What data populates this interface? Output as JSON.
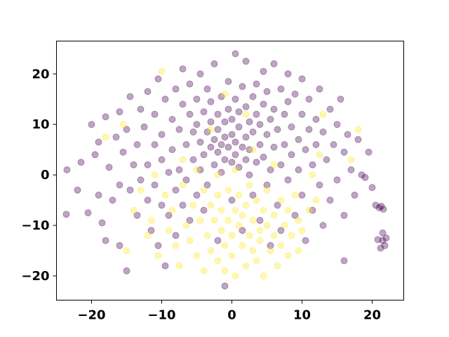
{
  "chart_data": {
    "type": "scatter",
    "title": "",
    "xlabel": "",
    "ylabel": "",
    "xlim": [
      -25,
      24.5
    ],
    "ylim": [
      -24.8,
      26.5
    ],
    "grid": false,
    "legend": "none",
    "x_ticks": [
      -20,
      -10,
      0,
      10,
      20
    ],
    "y_ticks": [
      -20,
      -10,
      0,
      10,
      20
    ],
    "x_tick_labels": [
      "−20",
      "−10",
      "0",
      "10",
      "20"
    ],
    "y_tick_labels": [
      "−20",
      "−10",
      "0",
      "10",
      "20"
    ],
    "point_alpha": 0.35,
    "colors": {
      "class_0": "#440154",
      "class_1": "#fde725"
    },
    "series": [
      {
        "color_key": "class_0",
        "points": [
          [
            -23.5,
            1.0
          ],
          [
            -23.6,
            -7.8
          ],
          [
            -22,
            -3
          ],
          [
            -21.5,
            2.5
          ],
          [
            -20,
            10
          ],
          [
            -20.5,
            -7.5
          ],
          [
            -19.5,
            4
          ],
          [
            -19,
            6.5
          ],
          [
            -19,
            -4
          ],
          [
            -18.5,
            -9.5
          ],
          [
            -18,
            11.5
          ],
          [
            -18,
            -13
          ],
          [
            -17.5,
            1.5
          ],
          [
            -17,
            -5
          ],
          [
            -16.5,
            7.5
          ],
          [
            -16,
            12.5
          ],
          [
            -16,
            -2
          ],
          [
            -16,
            -14
          ],
          [
            -15.5,
            4.5
          ],
          [
            -15,
            9
          ],
          [
            -15,
            -19
          ],
          [
            -14.5,
            15.5
          ],
          [
            -14.5,
            -3
          ],
          [
            -14,
            2
          ],
          [
            -13.5,
            6
          ],
          [
            -13.5,
            -8
          ],
          [
            -13,
            13
          ],
          [
            -13,
            -1
          ],
          [
            -12.5,
            9.5
          ],
          [
            -12,
            16.5
          ],
          [
            -12,
            -5
          ],
          [
            -12,
            2
          ],
          [
            -11.5,
            -11
          ],
          [
            -11,
            6
          ],
          [
            -11,
            12
          ],
          [
            -11,
            -2
          ],
          [
            -10.5,
            19
          ],
          [
            -10.5,
            -14
          ],
          [
            -10,
            8
          ],
          [
            -10,
            -6
          ],
          [
            -10,
            3
          ],
          [
            -9.5,
            15
          ],
          [
            -9.5,
            -18
          ],
          [
            -9,
            0.5
          ],
          [
            -9,
            -8
          ],
          [
            -8.5,
            11
          ],
          [
            -8.5,
            5
          ],
          [
            -8,
            17
          ],
          [
            -8,
            -3
          ],
          [
            -8,
            -12
          ],
          [
            -7.5,
            9
          ],
          [
            -7.5,
            1
          ],
          [
            -7,
            14
          ],
          [
            -7,
            -6
          ],
          [
            -7,
            21
          ],
          [
            -6.5,
            6
          ],
          [
            -6.5,
            -1
          ],
          [
            -6,
            12
          ],
          [
            -6,
            -9
          ],
          [
            -6,
            18
          ],
          [
            -5.5,
            3
          ],
          [
            -5.5,
            8.5
          ],
          [
            -5,
            15
          ],
          [
            -5,
            -4
          ],
          [
            -5,
            10
          ],
          [
            -4.5,
            1
          ],
          [
            -4.5,
            20
          ],
          [
            -4.5,
            6.5
          ],
          [
            -4,
            12.5
          ],
          [
            -4,
            -7
          ],
          [
            -4,
            4
          ],
          [
            -3.5,
            17
          ],
          [
            -3.5,
            8.5
          ],
          [
            -3.5,
            -2
          ],
          [
            -3,
            5.5
          ],
          [
            -3,
            10.5
          ],
          [
            -3,
            14.5
          ],
          [
            -2.5,
            2
          ],
          [
            -2.5,
            7
          ],
          [
            -2.5,
            22
          ],
          [
            -2,
            4.5
          ],
          [
            -2,
            9
          ],
          [
            -2,
            12
          ],
          [
            -2,
            -13
          ],
          [
            -1.5,
            6
          ],
          [
            -1.5,
            0.5
          ],
          [
            -1.5,
            15.5
          ],
          [
            -1,
            3
          ],
          [
            -1,
            7.5
          ],
          [
            -1,
            10.5
          ],
          [
            -1,
            -22
          ],
          [
            -0.5,
            5.5
          ],
          [
            -0.5,
            13
          ],
          [
            -0.5,
            18.5
          ],
          [
            0,
            2.5
          ],
          [
            0,
            8
          ],
          [
            0,
            11
          ],
          [
            0,
            -5
          ],
          [
            0.5,
            4
          ],
          [
            0.5,
            6.5
          ],
          [
            0.5,
            15
          ],
          [
            0.5,
            24
          ],
          [
            1,
            9.5
          ],
          [
            1,
            1.5
          ],
          [
            1,
            12.5
          ],
          [
            1.5,
            5.5
          ],
          [
            1.5,
            17.5
          ],
          [
            1.5,
            -11
          ],
          [
            2,
            3
          ],
          [
            2,
            7.5
          ],
          [
            2,
            13.5
          ],
          [
            2,
            22.5
          ],
          [
            2.5,
            0
          ],
          [
            2.5,
            10.5
          ],
          [
            2.5,
            5
          ],
          [
            3,
            8.5
          ],
          [
            3,
            15.5
          ],
          [
            3,
            -4
          ],
          [
            3.5,
            2.5
          ],
          [
            3.5,
            12
          ],
          [
            3.5,
            18
          ],
          [
            4,
            6
          ],
          [
            4,
            -9
          ],
          [
            4,
            10
          ],
          [
            4.5,
            3.5
          ],
          [
            4.5,
            14
          ],
          [
            4.5,
            20.5
          ],
          [
            5,
            8
          ],
          [
            5,
            -2
          ],
          [
            5,
            16.5
          ],
          [
            5.5,
            11
          ],
          [
            5.5,
            1
          ],
          [
            5.5,
            -14
          ],
          [
            6,
            5.5
          ],
          [
            6,
            13
          ],
          [
            6,
            22
          ],
          [
            6.5,
            -6
          ],
          [
            6.5,
            9
          ],
          [
            7,
            2
          ],
          [
            7,
            17
          ],
          [
            7,
            -11
          ],
          [
            7.5,
            12
          ],
          [
            7.5,
            6
          ],
          [
            8,
            -1
          ],
          [
            8,
            14.5
          ],
          [
            8,
            20
          ],
          [
            8.5,
            4
          ],
          [
            8.5,
            9.5
          ],
          [
            9,
            -8
          ],
          [
            9,
            16
          ],
          [
            9.5,
            7
          ],
          [
            9.5,
            1
          ],
          [
            10,
            12
          ],
          [
            10,
            -4
          ],
          [
            10,
            19
          ],
          [
            10.5,
            5
          ],
          [
            10.5,
            -13
          ],
          [
            11,
            9
          ],
          [
            11,
            15
          ],
          [
            11.5,
            2
          ],
          [
            11.5,
            -7
          ],
          [
            12,
            11
          ],
          [
            12,
            6
          ],
          [
            12.5,
            -2
          ],
          [
            12.5,
            17
          ],
          [
            13,
            8.5
          ],
          [
            13,
            -10
          ],
          [
            13.5,
            3
          ],
          [
            14,
            13
          ],
          [
            14,
            -5
          ],
          [
            14.5,
            6
          ],
          [
            15,
            10
          ],
          [
            15,
            -1
          ],
          [
            15.5,
            15
          ],
          [
            16,
            4.5
          ],
          [
            16,
            -8
          ],
          [
            16.5,
            8
          ],
          [
            16,
            -17
          ],
          [
            17,
            1
          ],
          [
            17.5,
            -4
          ],
          [
            18,
            7
          ],
          [
            18.5,
            0
          ],
          [
            19.5,
            4.5
          ],
          [
            19,
            -0.5
          ],
          [
            20,
            -2.5
          ],
          [
            20.5,
            -6
          ],
          [
            21,
            -6.5
          ],
          [
            21.3,
            -6.2
          ],
          [
            21.6,
            -6.8
          ],
          [
            21.5,
            -13
          ],
          [
            21.8,
            -14
          ],
          [
            22,
            -12.5
          ],
          [
            21.5,
            -11.5
          ],
          [
            21.2,
            -14.5
          ],
          [
            20.8,
            -12.8
          ]
        ]
      },
      {
        "color_key": "class_1",
        "points": [
          [
            -18,
            7.5
          ],
          [
            -15.5,
            10
          ],
          [
            -15,
            -15
          ],
          [
            -14,
            -7
          ],
          [
            -13,
            -3
          ],
          [
            -12,
            -12
          ],
          [
            -11.5,
            -9
          ],
          [
            -11,
            0
          ],
          [
            -10.5,
            -16
          ],
          [
            -10,
            20.5
          ],
          [
            -9.5,
            -4
          ],
          [
            -9,
            -11
          ],
          [
            -8.5,
            -7
          ],
          [
            -8,
            -14
          ],
          [
            -7.5,
            -18
          ],
          [
            -7,
            -2
          ],
          [
            -6.5,
            -10
          ],
          [
            -6,
            -13
          ],
          [
            -5.5,
            -6
          ],
          [
            -5,
            -16
          ],
          [
            -4.5,
            -9
          ],
          [
            -4,
            -19
          ],
          [
            -4,
            -3
          ],
          [
            -3.5,
            -12
          ],
          [
            -3,
            -15
          ],
          [
            -3,
            -6
          ],
          [
            -2.5,
            -9
          ],
          [
            -2,
            -17
          ],
          [
            -2,
            -4
          ],
          [
            -1.5,
            -11
          ],
          [
            -1.5,
            -7
          ],
          [
            -1,
            -14
          ],
          [
            -1,
            -19
          ],
          [
            -0.5,
            -9
          ],
          [
            -0.5,
            -3
          ],
          [
            0,
            -12
          ],
          [
            0,
            -16
          ],
          [
            0.5,
            -7
          ],
          [
            0.5,
            -20
          ],
          [
            1,
            -10
          ],
          [
            1,
            -4
          ],
          [
            1.5,
            -14
          ],
          [
            1.5,
            -8
          ],
          [
            2,
            -18
          ],
          [
            2,
            -6
          ],
          [
            2.5,
            -12
          ],
          [
            2.5,
            -2
          ],
          [
            3,
            -15
          ],
          [
            3,
            -9
          ],
          [
            3.5,
            -5
          ],
          [
            3.5,
            -17
          ],
          [
            4,
            -11
          ],
          [
            4,
            -13
          ],
          [
            4.5,
            -7
          ],
          [
            4.5,
            -20
          ],
          [
            5,
            -3
          ],
          [
            5,
            -10
          ],
          [
            5.5,
            -15
          ],
          [
            6,
            -8
          ],
          [
            6,
            -12
          ],
          [
            6.5,
            -18
          ],
          [
            7,
            -5
          ],
          [
            7,
            -14
          ],
          [
            7.5,
            -10
          ],
          [
            8,
            -16
          ],
          [
            8,
            -7
          ],
          [
            8.5,
            -12
          ],
          [
            9,
            -4
          ],
          [
            9.5,
            -9
          ],
          [
            9.5,
            -15
          ],
          [
            10,
            -11
          ],
          [
            11,
            -7
          ],
          [
            11.5,
            0
          ],
          [
            12,
            -5
          ],
          [
            12.5,
            4
          ],
          [
            13,
            12
          ],
          [
            18,
            9
          ],
          [
            17,
            3
          ],
          [
            -1,
            16
          ],
          [
            2,
            12
          ],
          [
            -3,
            9
          ],
          [
            0.5,
            1
          ],
          [
            -2,
            0
          ],
          [
            3,
            5
          ],
          [
            -5,
            1
          ],
          [
            6,
            2
          ],
          [
            -7,
            3
          ]
        ]
      }
    ]
  }
}
